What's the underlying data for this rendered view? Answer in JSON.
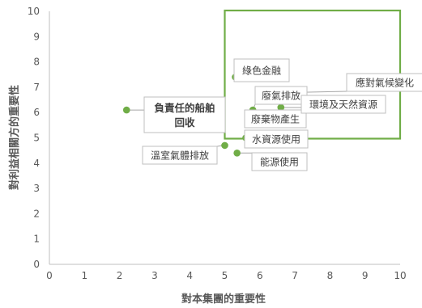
{
  "chart_data": {
    "type": "scatter",
    "xlabel": "對本集團的重要性",
    "ylabel": "對利益相關方的重要性",
    "xlim": [
      0,
      10
    ],
    "ylim": [
      0,
      10
    ],
    "x_ticks": [
      "0",
      "1",
      "2",
      "3",
      "4",
      "5",
      "6",
      "7",
      "8",
      "9",
      "10"
    ],
    "y_ticks": [
      "0",
      "1",
      "2",
      "3",
      "4",
      "5",
      "6",
      "7",
      "8",
      "9",
      "10"
    ],
    "grid": false,
    "point_color": "#70AD47",
    "highlight_box": {
      "x_range": [
        5,
        10
      ],
      "y_range": [
        5,
        10
      ],
      "color": "#70AD47"
    },
    "points": [
      {
        "label": "負責任的船舶回收",
        "x": 2.2,
        "y": 6.1,
        "bold": true
      },
      {
        "label": "溫室氣體排放",
        "x": 5.0,
        "y": 4.7
      },
      {
        "label": "能源使用",
        "x": 5.35,
        "y": 4.4
      },
      {
        "label": "水資源使用",
        "x": 5.6,
        "y": 5.0
      },
      {
        "label": "綠色金融",
        "x": 5.3,
        "y": 7.4
      },
      {
        "label": "廢氣排放",
        "x": 5.8,
        "y": 6.1
      },
      {
        "label": "廢棄物產生",
        "x": 6.0,
        "y": 5.6
      },
      {
        "label": "環境及天然資源",
        "x": 6.6,
        "y": 6.2
      },
      {
        "label": "應對氣候變化",
        "x": 7.2,
        "y": 6.8
      }
    ]
  }
}
